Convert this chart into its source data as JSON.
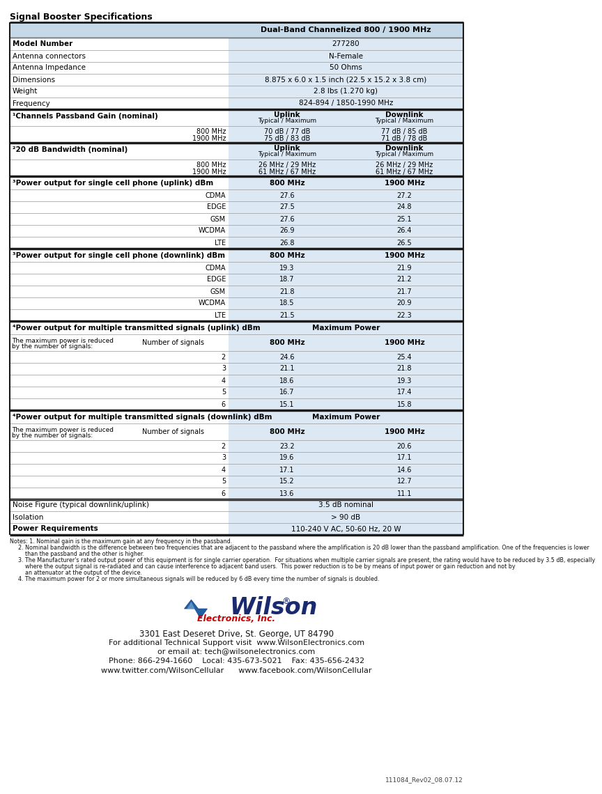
{
  "title": "Signal Booster Specifications",
  "header": "Dual-Band Channelized 800 / 1900 MHz",
  "bg_color": "#ffffff",
  "header_bg": "#c6d9e8",
  "cell_bg_light": "#dce8f3",
  "cell_bg_white": "#ffffff",
  "dark_border": "#1a1a1a",
  "light_border": "#999999",
  "fig_width": 6.59,
  "fig_height": 11.2,
  "specs": [
    {
      "label": "Model Number",
      "value": "277280",
      "bold_label": true
    },
    {
      "label": "Antenna connectors",
      "value": "N-Female",
      "bold_label": false
    },
    {
      "label": "Antenna Impedance",
      "value": "50 Ohms",
      "bold_label": false
    },
    {
      "label": "Dimensions",
      "value": "8.875 x 6.0 x 1.5 inch (22.5 x 15.2 x 3.8 cm)",
      "bold_label": false
    },
    {
      "label": "Weight",
      "value": "2.8 lbs (1.270 kg)",
      "bold_label": false
    },
    {
      "label": "Frequency",
      "value": "824-894 / 1850-1990 MHz",
      "bold_label": false
    }
  ],
  "footer_lines": [
    "3301 East Deseret Drive, St. George, UT 84790",
    "For additional Technical Support visit  www.WilsonElectronics.com",
    "or email at: tech@wilsonelectronics.com",
    "Phone: 866-294-1660    Local: 435-673-5021    Fax: 435-656-2432",
    "www.twitter.com/WilsonCellular      www.facebook.com/WilsonCellular"
  ],
  "notes": [
    "Notes: 1. Nominal gain is the maximum gain at any frequency in the passband.",
    "          2. Nominal bandwidth is the difference between two frequencies that are adjacent to the passband where the amplification is 20 dB lower than the passband amplification. One of the frequencies is lower",
    "              than the passband and the other is higher.",
    "          3. The Manufacturer's rated output power of this equipment is for single carrier operation.  For situations when multiple carrier signals are present, the rating would have to be reduced by 3.5 dB, especially",
    "              where the output signal is re-radiated and can cause interference to adjacent band users.  This power reduction is to be by means of input power or gain reduction and not by",
    "              an attenuator at the output of the device.",
    "          4. The maximum power for 2 or more simultaneous signals will be reduced by 6 dB every time the number of signals is doubled."
  ],
  "revision": "111084_Rev02_08.07.12"
}
